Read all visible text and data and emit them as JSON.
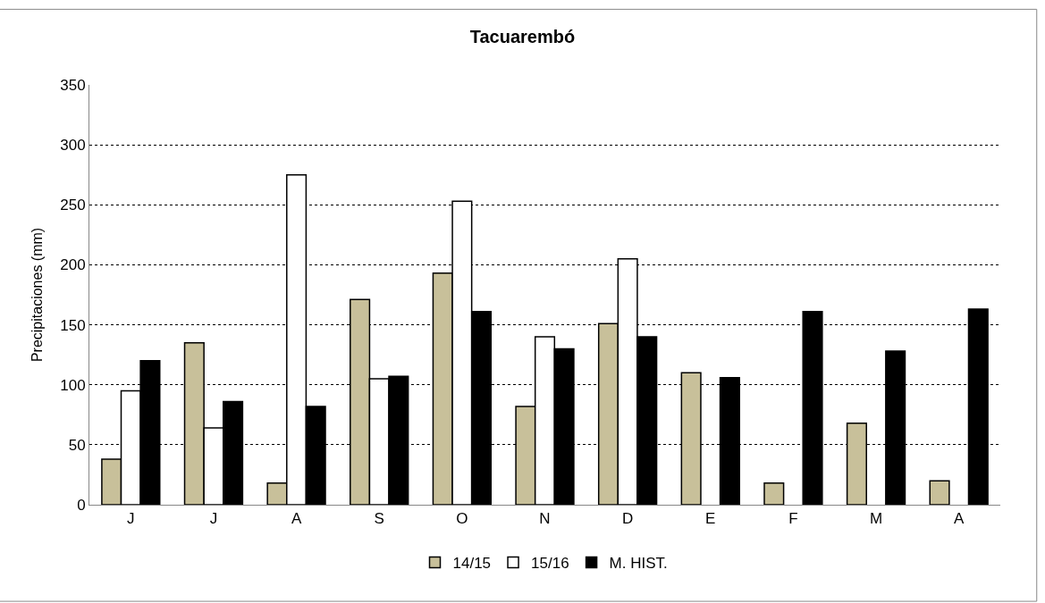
{
  "chart_data": {
    "type": "bar",
    "title": "Tacuarembó",
    "ylabel": "Precipitaciones (mm)",
    "categories": [
      "J",
      "J",
      "A",
      "S",
      "O",
      "N",
      "D",
      "E",
      "F",
      "M",
      "A"
    ],
    "series": [
      {
        "name": "14/15",
        "color": "#c8c09a",
        "values": [
          38,
          135,
          18,
          171,
          193,
          82,
          151,
          110,
          18,
          68,
          20
        ]
      },
      {
        "name": "15/16",
        "color": "#ffffff",
        "values": [
          95,
          64,
          275,
          105,
          253,
          140,
          205,
          null,
          null,
          null,
          null
        ]
      },
      {
        "name": "M. HIST.",
        "color": "#000000",
        "values": [
          120,
          86,
          82,
          107,
          161,
          130,
          140,
          106,
          161,
          128,
          163
        ]
      }
    ],
    "ylim": [
      0,
      350
    ],
    "yticks": [
      0,
      50,
      100,
      150,
      200,
      250,
      300,
      350
    ],
    "grid": "y",
    "legend": "bottom"
  }
}
